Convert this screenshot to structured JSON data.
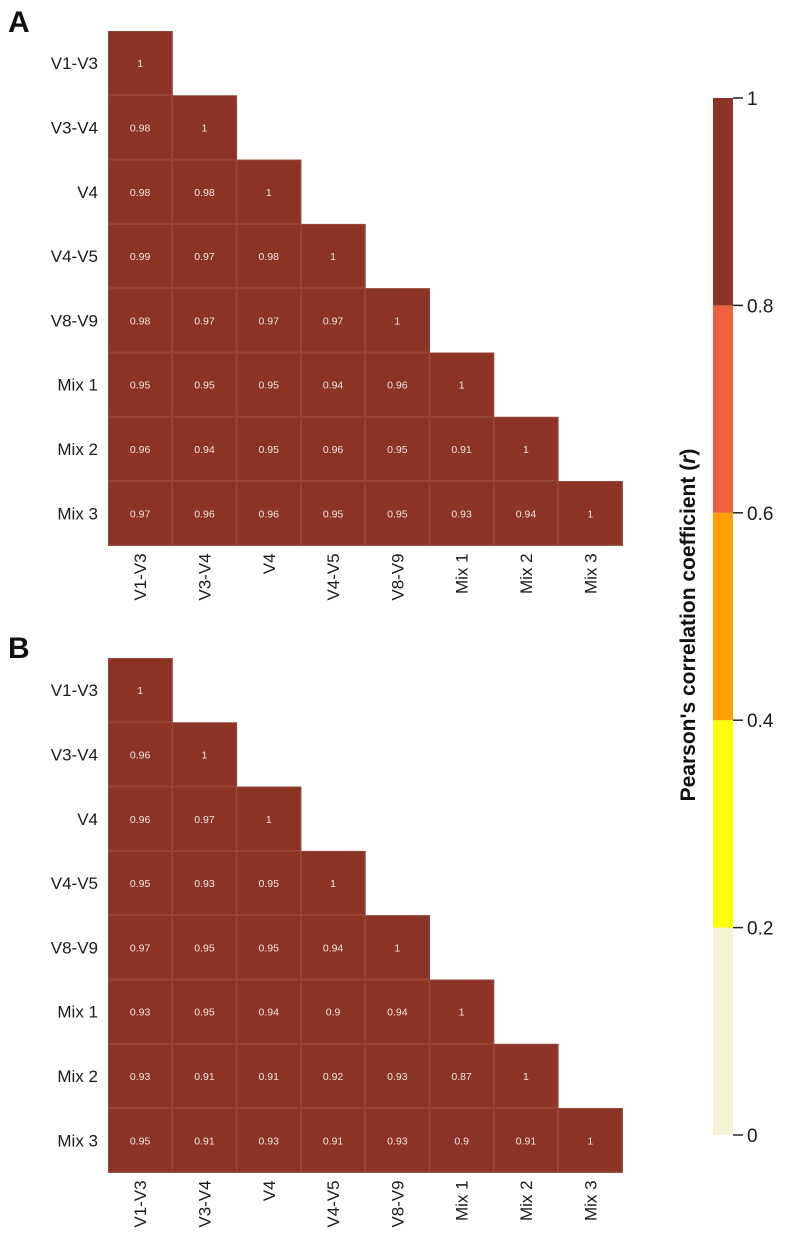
{
  "chart_data": [
    {
      "type": "heatmap",
      "panel": "A",
      "labels": [
        "V1-V3",
        "V3-V4",
        "V4",
        "V4-V5",
        "V8-V9",
        "Mix 1",
        "Mix 2",
        "Mix 3"
      ],
      "matrix": [
        [
          1
        ],
        [
          0.98,
          1
        ],
        [
          0.98,
          0.98,
          1
        ],
        [
          0.99,
          0.97,
          0.98,
          1
        ],
        [
          0.98,
          0.97,
          0.97,
          0.97,
          1
        ],
        [
          0.95,
          0.95,
          0.95,
          0.94,
          0.96,
          1
        ],
        [
          0.96,
          0.94,
          0.95,
          0.96,
          0.95,
          0.91,
          1
        ],
        [
          0.97,
          0.96,
          0.96,
          0.95,
          0.95,
          0.93,
          0.94,
          1
        ]
      ],
      "display": [
        [
          "1"
        ],
        [
          "0.98",
          "1"
        ],
        [
          "0.98",
          "0.98",
          "1"
        ],
        [
          "0.99",
          "0.97",
          "0.98",
          "1"
        ],
        [
          "0.98",
          "0.97",
          "0.97",
          "0.97",
          "1"
        ],
        [
          "0.95",
          "0.95",
          "0.95",
          "0.94",
          "0.96",
          "1"
        ],
        [
          "0.96",
          "0.94",
          "0.95",
          "0.96",
          "0.95",
          "0.91",
          "1"
        ],
        [
          "0.97",
          "0.96",
          "0.96",
          "0.95",
          "0.95",
          "0.93",
          "0.94",
          "1"
        ]
      ]
    },
    {
      "type": "heatmap",
      "panel": "B",
      "labels": [
        "V1-V3",
        "V3-V4",
        "V4",
        "V4-V5",
        "V8-V9",
        "Mix 1",
        "Mix 2",
        "Mix 3"
      ],
      "matrix": [
        [
          1
        ],
        [
          0.96,
          1
        ],
        [
          0.96,
          0.97,
          1
        ],
        [
          0.95,
          0.93,
          0.95,
          1
        ],
        [
          0.97,
          0.95,
          0.95,
          0.94,
          1
        ],
        [
          0.93,
          0.95,
          0.94,
          0.9,
          0.94,
          1
        ],
        [
          0.93,
          0.91,
          0.91,
          0.92,
          0.93,
          0.87,
          1
        ],
        [
          0.95,
          0.91,
          0.93,
          0.91,
          0.93,
          0.9,
          0.91,
          1
        ]
      ],
      "display": [
        [
          "1"
        ],
        [
          "0.96",
          "1"
        ],
        [
          "0.96",
          "0.97",
          "1"
        ],
        [
          "0.95",
          "0.93",
          "0.95",
          "1"
        ],
        [
          "0.97",
          "0.95",
          "0.95",
          "0.94",
          "1"
        ],
        [
          "0.93",
          "0.95",
          "0.94",
          "0.9",
          "0.94",
          "1"
        ],
        [
          "0.93",
          "0.91",
          "0.91",
          "0.92",
          "0.93",
          "0.87",
          "1"
        ],
        [
          "0.95",
          "0.91",
          "0.93",
          "0.91",
          "0.93",
          "0.9",
          "0.91",
          "1"
        ]
      ]
    }
  ],
  "colorbar": {
    "title_main": "Pearson's correlation coefficient (",
    "title_var": "r",
    "title_end": ")",
    "range": [
      0,
      1
    ],
    "bands": [
      {
        "from": 0.0,
        "to": 0.2,
        "color": "#f5f2d6"
      },
      {
        "from": 0.2,
        "to": 0.4,
        "color": "#ffff0a"
      },
      {
        "from": 0.4,
        "to": 0.6,
        "color": "#ff9f00"
      },
      {
        "from": 0.6,
        "to": 0.8,
        "color": "#f0613f"
      },
      {
        "from": 0.8,
        "to": 1.0,
        "color": "#8b3426"
      }
    ],
    "ticks": [
      {
        "value": 0,
        "label": "0"
      },
      {
        "value": 0.2,
        "label": "0.2"
      },
      {
        "value": 0.4,
        "label": "0.4"
      },
      {
        "value": 0.6,
        "label": "0.6"
      },
      {
        "value": 0.8,
        "label": "0.8"
      },
      {
        "value": 1,
        "label": "1"
      }
    ]
  }
}
